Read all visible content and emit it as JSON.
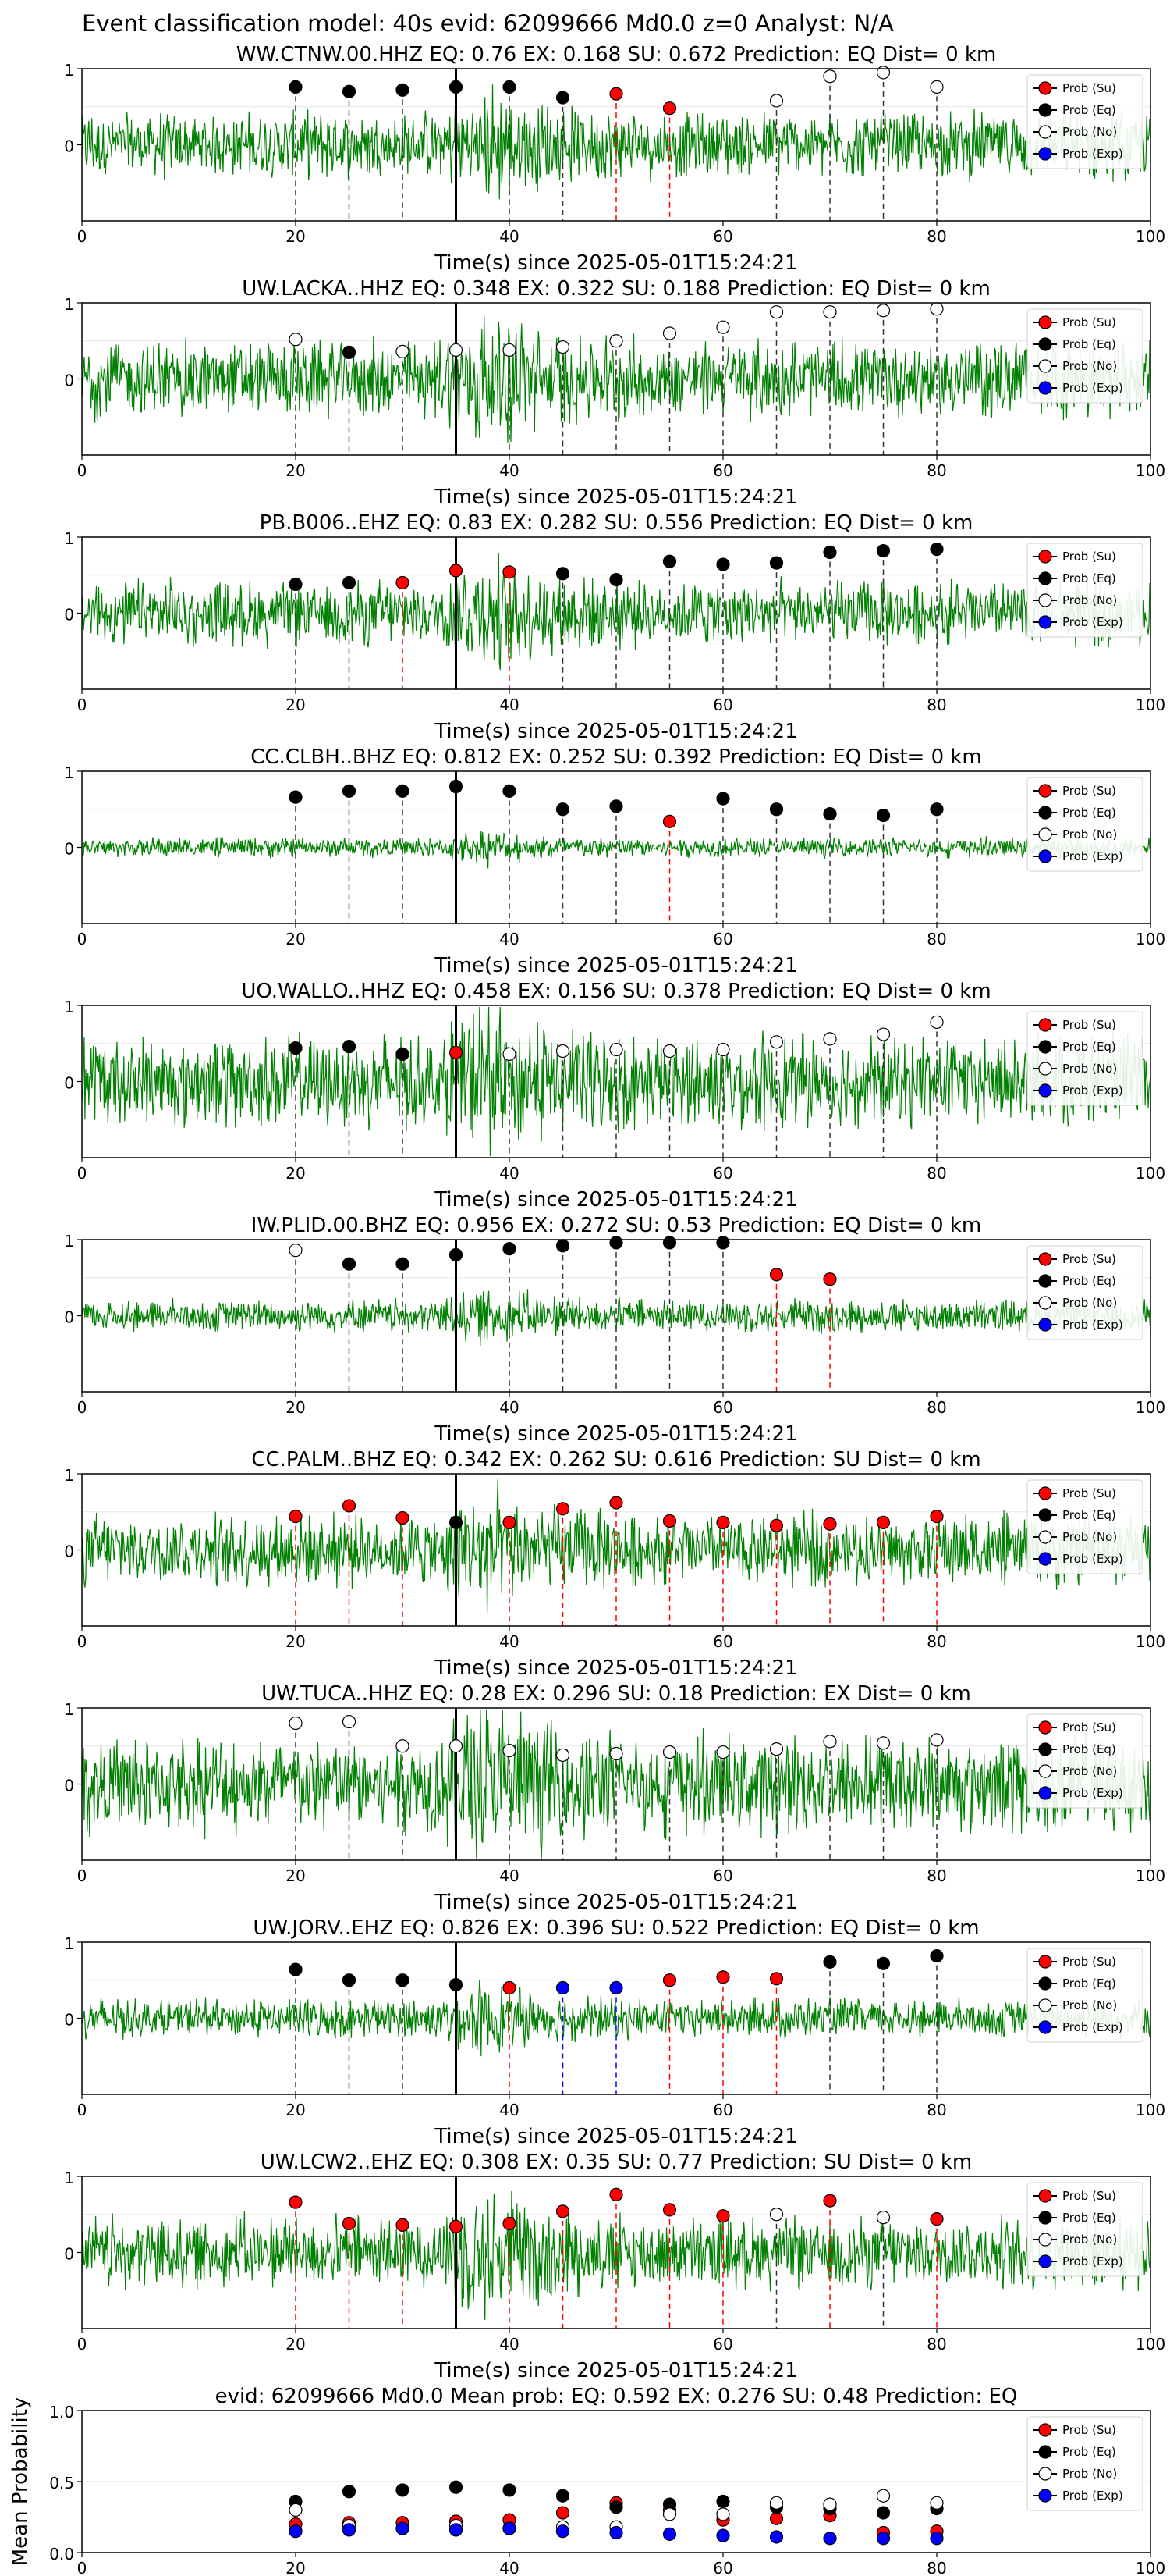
{
  "main_title": "Event classification model: 40s evid: 62099666 Md0.0 z=0 Analyst: N/A",
  "legend": [
    "Prob (Su)",
    "Prob (Eq)",
    "Prob (No)",
    "Prob (Exp)"
  ],
  "colors": {
    "su": "#ff0000",
    "eq": "#000000",
    "no": "#ffffff",
    "exp": "#0000ff",
    "waveform": "#008000"
  },
  "chart_data": [
    {
      "type": "line",
      "title": "WW.CTNW.00.HHZ   EQ: 0.76  EX: 0.168  SU: 0.672   Prediction: EQ    Dist= 0 km",
      "xlabel": "Time(s) since 2025-05-01T15:24:21",
      "ylabel": "",
      "xlim": [
        0,
        100
      ],
      "ylim": [
        -1,
        1
      ],
      "xticks": [
        "0",
        "20",
        "40",
        "60",
        "80",
        "100"
      ],
      "yticks": [
        "0",
        "1"
      ],
      "amplitude": 0.5,
      "vertical_line": 35,
      "points": [
        {
          "x": 20,
          "y": 0.76,
          "class": "eq"
        },
        {
          "x": 25,
          "y": 0.7,
          "class": "eq"
        },
        {
          "x": 30,
          "y": 0.72,
          "class": "eq"
        },
        {
          "x": 35,
          "y": 0.76,
          "class": "eq"
        },
        {
          "x": 40,
          "y": 0.76,
          "class": "eq"
        },
        {
          "x": 45,
          "y": 0.62,
          "class": "eq"
        },
        {
          "x": 50,
          "y": 0.67,
          "class": "su"
        },
        {
          "x": 55,
          "y": 0.48,
          "class": "su"
        },
        {
          "x": 65,
          "y": 0.58,
          "class": "no"
        },
        {
          "x": 70,
          "y": 0.9,
          "class": "no"
        },
        {
          "x": 75,
          "y": 0.95,
          "class": "no"
        },
        {
          "x": 80,
          "y": 0.76,
          "class": "no"
        }
      ]
    },
    {
      "type": "line",
      "title": "UW.LACKA..HHZ   EQ: 0.348  EX: 0.322  SU: 0.188   Prediction: EQ    Dist= 0 km",
      "xlabel": "Time(s) since 2025-05-01T15:24:21",
      "ylabel": "",
      "xlim": [
        0,
        100
      ],
      "ylim": [
        -1,
        1
      ],
      "xticks": [
        "0",
        "20",
        "40",
        "60",
        "80",
        "100"
      ],
      "yticks": [
        "0",
        "1"
      ],
      "amplitude": 0.6,
      "vertical_line": 35,
      "points": [
        {
          "x": 20,
          "y": 0.52,
          "class": "no"
        },
        {
          "x": 25,
          "y": 0.35,
          "class": "eq"
        },
        {
          "x": 30,
          "y": 0.36,
          "class": "no"
        },
        {
          "x": 35,
          "y": 0.38,
          "class": "no"
        },
        {
          "x": 40,
          "y": 0.38,
          "class": "no"
        },
        {
          "x": 45,
          "y": 0.42,
          "class": "no"
        },
        {
          "x": 50,
          "y": 0.5,
          "class": "no"
        },
        {
          "x": 55,
          "y": 0.6,
          "class": "no"
        },
        {
          "x": 60,
          "y": 0.68,
          "class": "no"
        },
        {
          "x": 65,
          "y": 0.88,
          "class": "no"
        },
        {
          "x": 70,
          "y": 0.88,
          "class": "no"
        },
        {
          "x": 75,
          "y": 0.9,
          "class": "no"
        },
        {
          "x": 80,
          "y": 0.92,
          "class": "no"
        }
      ]
    },
    {
      "type": "line",
      "title": "PB.B006..EHZ   EQ: 0.83  EX: 0.282  SU: 0.556   Prediction: EQ    Dist= 0 km",
      "xlabel": "Time(s) since 2025-05-01T15:24:21",
      "ylabel": "",
      "xlim": [
        0,
        100
      ],
      "ylim": [
        -1,
        1
      ],
      "xticks": [
        "0",
        "20",
        "40",
        "60",
        "80",
        "100"
      ],
      "yticks": [
        "0",
        "1"
      ],
      "amplitude": 0.5,
      "vertical_line": 35,
      "points": [
        {
          "x": 20,
          "y": 0.38,
          "class": "eq"
        },
        {
          "x": 25,
          "y": 0.4,
          "class": "eq"
        },
        {
          "x": 30,
          "y": 0.4,
          "class": "su"
        },
        {
          "x": 35,
          "y": 0.56,
          "class": "su"
        },
        {
          "x": 40,
          "y": 0.54,
          "class": "su"
        },
        {
          "x": 45,
          "y": 0.52,
          "class": "eq"
        },
        {
          "x": 50,
          "y": 0.44,
          "class": "eq"
        },
        {
          "x": 55,
          "y": 0.68,
          "class": "eq"
        },
        {
          "x": 60,
          "y": 0.64,
          "class": "eq"
        },
        {
          "x": 65,
          "y": 0.66,
          "class": "eq"
        },
        {
          "x": 70,
          "y": 0.8,
          "class": "eq"
        },
        {
          "x": 75,
          "y": 0.82,
          "class": "eq"
        },
        {
          "x": 80,
          "y": 0.84,
          "class": "eq"
        }
      ]
    },
    {
      "type": "line",
      "title": "CC.CLBH..BHZ   EQ: 0.812  EX: 0.252  SU: 0.392   Prediction: EQ    Dist= 0 km",
      "xlabel": "Time(s) since 2025-05-01T15:24:21",
      "ylabel": "",
      "xlim": [
        0,
        100
      ],
      "ylim": [
        -1,
        1
      ],
      "xticks": [
        "0",
        "20",
        "40",
        "60",
        "80",
        "100"
      ],
      "yticks": [
        "0",
        "1"
      ],
      "amplitude": 0.15,
      "vertical_line": 35,
      "points": [
        {
          "x": 20,
          "y": 0.66,
          "class": "eq"
        },
        {
          "x": 25,
          "y": 0.74,
          "class": "eq"
        },
        {
          "x": 30,
          "y": 0.74,
          "class": "eq"
        },
        {
          "x": 35,
          "y": 0.8,
          "class": "eq"
        },
        {
          "x": 40,
          "y": 0.74,
          "class": "eq"
        },
        {
          "x": 45,
          "y": 0.5,
          "class": "eq"
        },
        {
          "x": 50,
          "y": 0.54,
          "class": "eq"
        },
        {
          "x": 55,
          "y": 0.34,
          "class": "su"
        },
        {
          "x": 60,
          "y": 0.64,
          "class": "eq"
        },
        {
          "x": 65,
          "y": 0.5,
          "class": "eq"
        },
        {
          "x": 70,
          "y": 0.44,
          "class": "eq"
        },
        {
          "x": 75,
          "y": 0.42,
          "class": "eq"
        },
        {
          "x": 80,
          "y": 0.5,
          "class": "eq"
        }
      ]
    },
    {
      "type": "line",
      "title": "UO.WALLO..HHZ   EQ: 0.458  EX: 0.156  SU: 0.378   Prediction: EQ    Dist= 0 km",
      "xlabel": "Time(s) since 2025-05-01T15:24:21",
      "ylabel": "",
      "xlim": [
        0,
        100
      ],
      "ylim": [
        -1,
        1
      ],
      "xticks": [
        "0",
        "20",
        "40",
        "60",
        "80",
        "100"
      ],
      "yticks": [
        "0",
        "1"
      ],
      "amplitude": 0.7,
      "vertical_line": 35,
      "points": [
        {
          "x": 20,
          "y": 0.44,
          "class": "eq"
        },
        {
          "x": 25,
          "y": 0.46,
          "class": "eq"
        },
        {
          "x": 30,
          "y": 0.36,
          "class": "eq"
        },
        {
          "x": 35,
          "y": 0.38,
          "class": "su"
        },
        {
          "x": 40,
          "y": 0.36,
          "class": "no"
        },
        {
          "x": 45,
          "y": 0.4,
          "class": "no"
        },
        {
          "x": 50,
          "y": 0.42,
          "class": "no"
        },
        {
          "x": 55,
          "y": 0.4,
          "class": "no"
        },
        {
          "x": 60,
          "y": 0.42,
          "class": "no"
        },
        {
          "x": 65,
          "y": 0.52,
          "class": "no"
        },
        {
          "x": 70,
          "y": 0.56,
          "class": "no"
        },
        {
          "x": 75,
          "y": 0.62,
          "class": "no"
        },
        {
          "x": 80,
          "y": 0.78,
          "class": "no"
        }
      ]
    },
    {
      "type": "line",
      "title": "IW.PLID.00.BHZ   EQ: 0.956  EX: 0.272  SU: 0.53   Prediction: EQ    Dist= 0 km",
      "xlabel": "Time(s) since 2025-05-01T15:24:21",
      "ylabel": "",
      "xlim": [
        0,
        100
      ],
      "ylim": [
        -1,
        1
      ],
      "xticks": [
        "0",
        "20",
        "40",
        "60",
        "80",
        "100"
      ],
      "yticks": [
        "0",
        "1"
      ],
      "amplitude": 0.25,
      "vertical_line": 35,
      "points": [
        {
          "x": 20,
          "y": 0.86,
          "class": "no"
        },
        {
          "x": 25,
          "y": 0.68,
          "class": "eq"
        },
        {
          "x": 30,
          "y": 0.68,
          "class": "eq"
        },
        {
          "x": 35,
          "y": 0.8,
          "class": "eq"
        },
        {
          "x": 40,
          "y": 0.88,
          "class": "eq"
        },
        {
          "x": 45,
          "y": 0.92,
          "class": "eq"
        },
        {
          "x": 50,
          "y": 0.96,
          "class": "eq"
        },
        {
          "x": 55,
          "y": 0.96,
          "class": "eq"
        },
        {
          "x": 60,
          "y": 0.96,
          "class": "eq"
        },
        {
          "x": 65,
          "y": 0.54,
          "class": "su"
        },
        {
          "x": 70,
          "y": 0.48,
          "class": "su"
        }
      ]
    },
    {
      "type": "line",
      "title": "CC.PALM..BHZ   EQ: 0.342  EX: 0.262  SU: 0.616   Prediction: SU    Dist= 0 km",
      "xlabel": "Time(s) since 2025-05-01T15:24:21",
      "ylabel": "",
      "xlim": [
        0,
        100
      ],
      "ylim": [
        -1,
        1
      ],
      "xticks": [
        "0",
        "20",
        "40",
        "60",
        "80",
        "100"
      ],
      "yticks": [
        "0",
        "1"
      ],
      "amplitude": 0.55,
      "vertical_line": 35,
      "points": [
        {
          "x": 20,
          "y": 0.44,
          "class": "su"
        },
        {
          "x": 25,
          "y": 0.58,
          "class": "su"
        },
        {
          "x": 30,
          "y": 0.42,
          "class": "su"
        },
        {
          "x": 35,
          "y": 0.36,
          "class": "eq"
        },
        {
          "x": 40,
          "y": 0.36,
          "class": "su"
        },
        {
          "x": 45,
          "y": 0.54,
          "class": "su"
        },
        {
          "x": 50,
          "y": 0.62,
          "class": "su"
        },
        {
          "x": 55,
          "y": 0.38,
          "class": "su"
        },
        {
          "x": 60,
          "y": 0.36,
          "class": "su"
        },
        {
          "x": 65,
          "y": 0.32,
          "class": "su"
        },
        {
          "x": 70,
          "y": 0.34,
          "class": "su"
        },
        {
          "x": 75,
          "y": 0.36,
          "class": "su"
        },
        {
          "x": 80,
          "y": 0.44,
          "class": "su"
        }
      ]
    },
    {
      "type": "line",
      "title": "UW.TUCA..HHZ   EQ: 0.28  EX: 0.296  SU: 0.18   Prediction: EX    Dist= 0 km",
      "xlabel": "Time(s) since 2025-05-01T15:24:21",
      "ylabel": "",
      "xlim": [
        0,
        100
      ],
      "ylim": [
        -1,
        1
      ],
      "xticks": [
        "0",
        "20",
        "40",
        "60",
        "80",
        "100"
      ],
      "yticks": [
        "0",
        "1"
      ],
      "amplitude": 0.75,
      "vertical_line": 35,
      "points": [
        {
          "x": 20,
          "y": 0.8,
          "class": "no"
        },
        {
          "x": 25,
          "y": 0.82,
          "class": "no"
        },
        {
          "x": 30,
          "y": 0.5,
          "class": "no"
        },
        {
          "x": 35,
          "y": 0.5,
          "class": "no"
        },
        {
          "x": 40,
          "y": 0.44,
          "class": "no"
        },
        {
          "x": 45,
          "y": 0.38,
          "class": "no"
        },
        {
          "x": 50,
          "y": 0.4,
          "class": "no"
        },
        {
          "x": 55,
          "y": 0.42,
          "class": "no"
        },
        {
          "x": 60,
          "y": 0.42,
          "class": "no"
        },
        {
          "x": 65,
          "y": 0.46,
          "class": "no"
        },
        {
          "x": 70,
          "y": 0.56,
          "class": "no"
        },
        {
          "x": 75,
          "y": 0.54,
          "class": "no"
        },
        {
          "x": 80,
          "y": 0.58,
          "class": "no"
        }
      ]
    },
    {
      "type": "line",
      "title": "UW.JORV..EHZ   EQ: 0.826  EX: 0.396  SU: 0.522   Prediction: EQ    Dist= 0 km",
      "xlabel": "Time(s) since 2025-05-01T15:24:21",
      "ylabel": "",
      "xlim": [
        0,
        100
      ],
      "ylim": [
        -1,
        1
      ],
      "xticks": [
        "0",
        "20",
        "40",
        "60",
        "80",
        "100"
      ],
      "yticks": [
        "0",
        "1"
      ],
      "amplitude": 0.3,
      "vertical_line": 35,
      "points": [
        {
          "x": 20,
          "y": 0.64,
          "class": "eq"
        },
        {
          "x": 25,
          "y": 0.5,
          "class": "eq"
        },
        {
          "x": 30,
          "y": 0.5,
          "class": "eq"
        },
        {
          "x": 35,
          "y": 0.44,
          "class": "eq"
        },
        {
          "x": 40,
          "y": 0.4,
          "class": "su"
        },
        {
          "x": 45,
          "y": 0.4,
          "class": "exp"
        },
        {
          "x": 50,
          "y": 0.4,
          "class": "exp"
        },
        {
          "x": 55,
          "y": 0.5,
          "class": "su"
        },
        {
          "x": 60,
          "y": 0.54,
          "class": "su"
        },
        {
          "x": 65,
          "y": 0.52,
          "class": "su"
        },
        {
          "x": 70,
          "y": 0.74,
          "class": "eq"
        },
        {
          "x": 75,
          "y": 0.72,
          "class": "eq"
        },
        {
          "x": 80,
          "y": 0.82,
          "class": "eq"
        }
      ]
    },
    {
      "type": "line",
      "title": "UW.LCW2..EHZ   EQ: 0.308  EX: 0.35  SU: 0.77   Prediction: SU    Dist= 0 km",
      "xlabel": "Time(s) since 2025-05-01T15:24:21",
      "ylabel": "",
      "xlim": [
        0,
        100
      ],
      "ylim": [
        -1,
        1
      ],
      "xticks": [
        "0",
        "20",
        "40",
        "60",
        "80",
        "100"
      ],
      "yticks": [
        "0",
        "1"
      ],
      "amplitude": 0.55,
      "vertical_line": 35,
      "points": [
        {
          "x": 20,
          "y": 0.66,
          "class": "su"
        },
        {
          "x": 25,
          "y": 0.38,
          "class": "su"
        },
        {
          "x": 30,
          "y": 0.36,
          "class": "su"
        },
        {
          "x": 35,
          "y": 0.34,
          "class": "su"
        },
        {
          "x": 40,
          "y": 0.38,
          "class": "su"
        },
        {
          "x": 45,
          "y": 0.54,
          "class": "su"
        },
        {
          "x": 50,
          "y": 0.76,
          "class": "su"
        },
        {
          "x": 55,
          "y": 0.56,
          "class": "su"
        },
        {
          "x": 60,
          "y": 0.48,
          "class": "su"
        },
        {
          "x": 65,
          "y": 0.5,
          "class": "no"
        },
        {
          "x": 70,
          "y": 0.68,
          "class": "su"
        },
        {
          "x": 75,
          "y": 0.46,
          "class": "no"
        },
        {
          "x": 80,
          "y": 0.44,
          "class": "su"
        }
      ]
    },
    {
      "type": "scatter",
      "title": "evid: 62099666  Md0.0   Mean prob:   EQ: 0.592  EX: 0.276  SU: 0.48   Prediction: EQ",
      "xlabel": "",
      "ylabel": "Mean Probability",
      "xlim": [
        0,
        100
      ],
      "ylim": [
        0,
        1
      ],
      "xticks": [
        "0",
        "20",
        "40",
        "60",
        "80",
        "100"
      ],
      "yticks": [
        "0.0",
        "0.5",
        "1.0"
      ],
      "x": [
        20,
        25,
        30,
        35,
        40,
        45,
        50,
        55,
        60,
        65,
        70,
        75,
        80
      ],
      "series": [
        {
          "name": "Prob (Su)",
          "values": [
            0.2,
            0.21,
            0.21,
            0.22,
            0.23,
            0.28,
            0.35,
            0.3,
            0.23,
            0.24,
            0.26,
            0.14,
            0.15
          ]
        },
        {
          "name": "Prob (Eq)",
          "values": [
            0.36,
            0.43,
            0.44,
            0.46,
            0.44,
            0.4,
            0.32,
            0.34,
            0.36,
            0.32,
            0.31,
            0.28,
            0.31
          ]
        },
        {
          "name": "Prob (No)",
          "values": [
            0.3,
            0.19,
            0.17,
            0.19,
            0.17,
            0.18,
            0.18,
            0.27,
            0.27,
            0.35,
            0.34,
            0.4,
            0.35
          ]
        },
        {
          "name": "Prob (Exp)",
          "values": [
            0.15,
            0.16,
            0.17,
            0.16,
            0.17,
            0.15,
            0.14,
            0.13,
            0.12,
            0.11,
            0.1,
            0.1,
            0.1
          ]
        }
      ]
    }
  ]
}
